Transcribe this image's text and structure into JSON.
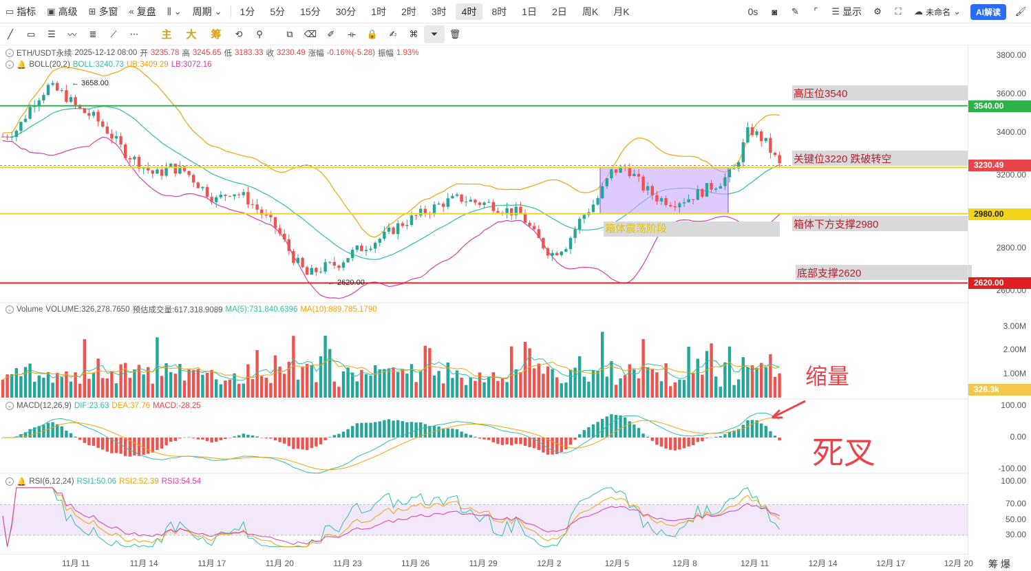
{
  "toolbar": {
    "items": [
      {
        "icon": "indicator-icon",
        "label": "指标"
      },
      {
        "icon": "advanced-icon",
        "label": "高级"
      },
      {
        "icon": "multi-window-icon",
        "label": "多窗"
      },
      {
        "icon": "replay-icon",
        "label": "复盘"
      },
      {
        "icon": "chart-type-icon",
        "label": ""
      },
      {
        "icon": "",
        "label": "周期"
      }
    ],
    "timeframes": [
      "1分",
      "5分",
      "15分",
      "30分",
      "1时",
      "2时",
      "3时",
      "4时",
      "8时",
      "1日",
      "2日",
      "周K",
      "月K"
    ],
    "active_timeframe": "4时",
    "right": {
      "countdown": "0s",
      "display_label": "显示",
      "layout_name": "未命名",
      "ai_label": "AI解读"
    }
  },
  "drawbar": {
    "chinese_tools": [
      "主",
      "大",
      "筹"
    ]
  },
  "main_legend": {
    "symbol": "ETH/USDT永续",
    "time": "2025-12-12 08:00",
    "open_label": "开",
    "open": "3235.78",
    "high_label": "高",
    "high": "3245.65",
    "low_label": "低",
    "low": "3183.33",
    "close_label": "收",
    "close": "3230.49",
    "change_label": "涨幅",
    "change": "-0.16%(-5.28)",
    "amp_label": "振幅",
    "amp": "1.93%"
  },
  "boll_legend": {
    "name": "BOLL(20,2)",
    "boll": "BOLL:3240.73",
    "ub": "UB:3409.29",
    "lb": "LB:3072.16"
  },
  "volume_legend": {
    "name": "Volume",
    "volume": "VOLUME:326,278.7650",
    "est": "预估成交量:617,318.9089",
    "ma5": "MA(5):731,840.6396",
    "ma10": "MA(10):889,785.1790"
  },
  "macd_legend": {
    "name": "MACD(12,26,9)",
    "dif": "DIF:23.63",
    "dea": "DEA:37.76",
    "macd": "MACD:-28.25"
  },
  "rsi_legend": {
    "name": "RSI(6,12,24)",
    "rsi1": "RSI1:50.06",
    "rsi2": "RSI2:52.39",
    "rsi3": "RSI3:54.54"
  },
  "annotations": {
    "high_pressure": "高压位3540",
    "key_level": "关键位3220 跌破转空",
    "box_support": "箱体下方支撑2980",
    "bottom_support": "底部支撑2620",
    "box_label": "箱体震荡阶段",
    "shrink_volume": "缩量",
    "death_cross": "死叉",
    "max_label": "3658.00",
    "min_label": "2620.00"
  },
  "price_axis": {
    "ticks": [
      "3800.00",
      "3600.00",
      "3400.00",
      "2800.00"
    ],
    "partial_ticks": [
      "3200.00",
      "2600.00"
    ],
    "badges": [
      {
        "value": "3540.00",
        "color": "#2db24a"
      },
      {
        "value": "3230.49",
        "color": "#e8444a"
      },
      {
        "value": "2980.00",
        "color": "#f2d51a"
      },
      {
        "value": "2620.00",
        "color": "#e02020"
      }
    ]
  },
  "volume_axis": {
    "ticks": [
      "3.00M",
      "2.00M",
      "1.00M"
    ],
    "badge": "326.3k"
  },
  "macd_axis": {
    "ticks": [
      "100.00",
      "0.00",
      "-100.00"
    ]
  },
  "rsi_axis": {
    "ticks": [
      "100.00",
      "70.00",
      "50.00",
      "30.00"
    ]
  },
  "date_axis": {
    "labels": [
      "11月 11",
      "11月 14",
      "11月 17",
      "11月 20",
      "11月 23",
      "11月 26",
      "11月 29",
      "12月 2",
      "12月 5",
      "12月 8",
      "12月 11",
      "12月 14",
      "12月 17",
      "12月 20"
    ]
  },
  "corner_label": "筹 爆",
  "colors": {
    "up": "#26a69a",
    "down": "#ef5350",
    "boll_mid": "#2ebfa5",
    "boll_ub": "#f0a30a",
    "boll_lb": "#d63fa8",
    "box": "#c9a7ff"
  },
  "chart_data": {
    "type": "candlestick",
    "title": "",
    "ylabel": "",
    "ylim": [
      2560,
      3860
    ],
    "horizontal_levels": [
      3540,
      3220,
      2980,
      2620
    ],
    "close_approx": [
      3380,
      3420,
      3560,
      3640,
      3600,
      3520,
      3480,
      3400,
      3300,
      3240,
      3180,
      3220,
      3200,
      3120,
      3050,
      3100,
      3060,
      2980,
      2900,
      2760,
      2660,
      2700,
      2720,
      2780,
      2820,
      2860,
      2920,
      2960,
      3000,
      3040,
      3060,
      3040,
      3030,
      3000,
      2980,
      2860,
      2770,
      2820,
      2960,
      3050,
      3200,
      3220,
      3120,
      3060,
      3040,
      3060,
      3100,
      3140,
      3200,
      3420,
      3360,
      3230
    ]
  }
}
